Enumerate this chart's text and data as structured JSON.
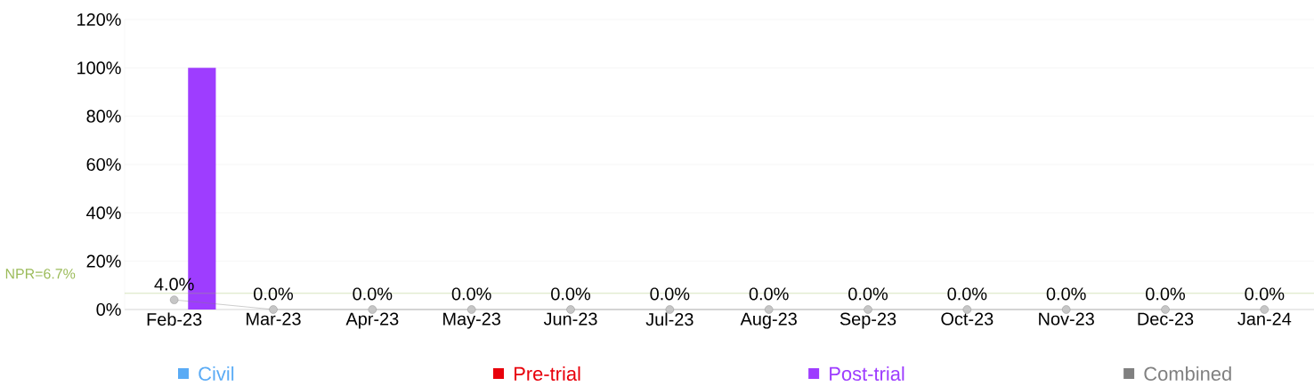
{
  "chart_data": {
    "type": "bar",
    "categories": [
      "Feb-23",
      "Mar-23",
      "Apr-23",
      "May-23",
      "Jun-23",
      "Jul-23",
      "Aug-23",
      "Sep-23",
      "Oct-23",
      "Nov-23",
      "Dec-23",
      "Jan-24"
    ],
    "series": [
      {
        "name": "Civil",
        "color": "#5aabf5",
        "values": [
          null,
          null,
          null,
          null,
          null,
          null,
          null,
          null,
          null,
          null,
          null,
          null
        ]
      },
      {
        "name": "Pre-trial",
        "color": "#e8000b",
        "values": [
          null,
          null,
          null,
          null,
          null,
          null,
          null,
          null,
          null,
          null,
          null,
          null
        ]
      },
      {
        "name": "Post-trial",
        "color": "#9e3dff",
        "values": [
          100,
          null,
          null,
          null,
          null,
          null,
          null,
          null,
          null,
          null,
          null,
          null
        ]
      },
      {
        "name": "Combined",
        "color": "#808080",
        "type": "line",
        "marker": "circle",
        "values": [
          4.0,
          0.0,
          0.0,
          0.0,
          0.0,
          0.0,
          0.0,
          0.0,
          0.0,
          0.0,
          0.0,
          0.0
        ],
        "value_labels": [
          "4.0%",
          "0.0%",
          "0.0%",
          "0.0%",
          "0.0%",
          "0.0%",
          "0.0%",
          "0.0%",
          "0.0%",
          "0.0%",
          "0.0%",
          "0.0%"
        ]
      }
    ],
    "ylim": [
      0,
      120
    ],
    "yticks": [
      {
        "value": 0,
        "label": "0%"
      },
      {
        "value": 20,
        "label": "20%"
      },
      {
        "value": 40,
        "label": "40%"
      },
      {
        "value": 60,
        "label": "60%"
      },
      {
        "value": 80,
        "label": "80%"
      },
      {
        "value": 100,
        "label": "100%"
      },
      {
        "value": 120,
        "label": "120%"
      }
    ],
    "ref_lines": [
      {
        "axis": "y",
        "value": 6.7,
        "label": "NPR=6.7%",
        "color": "#9bbb59"
      }
    ],
    "grid": "y",
    "legend": "bottom"
  }
}
